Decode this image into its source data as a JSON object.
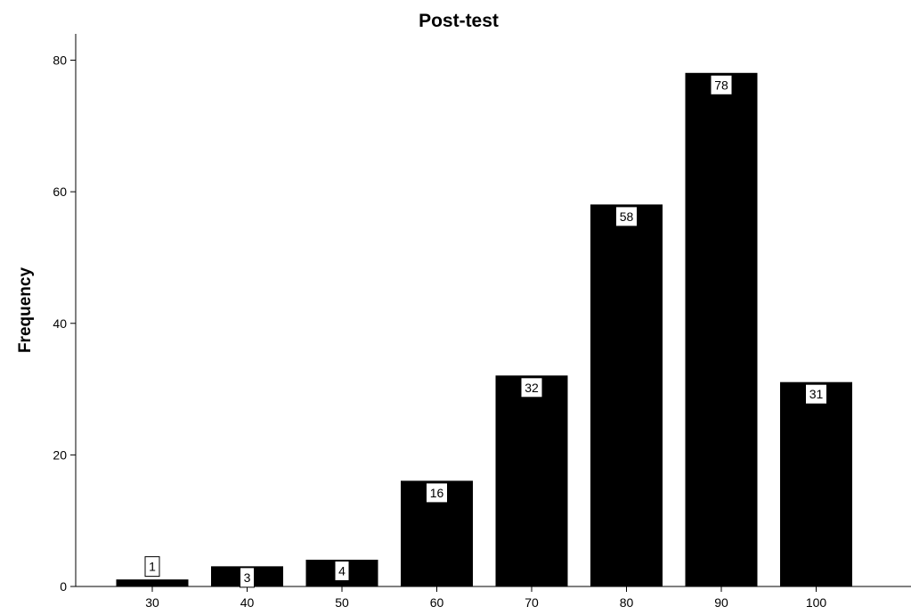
{
  "chart_data": {
    "type": "bar",
    "title": "Post-test",
    "xlabel": "",
    "ylabel": "Frequency",
    "categories": [
      "30",
      "40",
      "50",
      "60",
      "70",
      "80",
      "90",
      "100"
    ],
    "values": [
      1,
      3,
      4,
      16,
      32,
      58,
      78,
      31
    ],
    "data_labels": [
      "1",
      "3",
      "4",
      "16",
      "32",
      "58",
      "78",
      "31"
    ],
    "yticks": [
      0,
      20,
      40,
      60,
      80
    ],
    "ylim": [
      0,
      84
    ],
    "grid": false,
    "bar_color": "#000000",
    "label_box_color": "#ffffff"
  }
}
